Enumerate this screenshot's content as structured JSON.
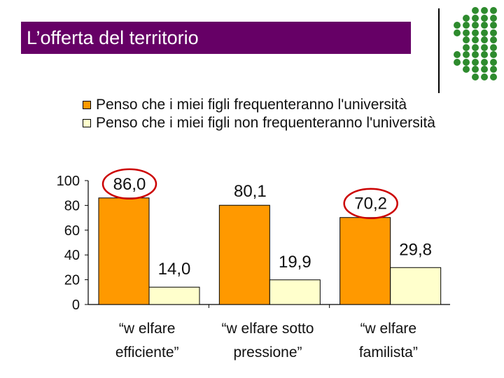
{
  "slide": {
    "title": "L’offerta del territorio",
    "accent": "#660066",
    "dot_color": "#2e8b2e"
  },
  "chart_data": {
    "type": "bar",
    "categories": [
      [
        "“w elfare",
        "efficiente”"
      ],
      [
        "“w elfare sotto",
        "pressione”"
      ],
      [
        "“w elfare",
        "familista”"
      ]
    ],
    "series": [
      {
        "name": "Penso che i miei figli frequenteranno l'università",
        "values": [
          86.0,
          80.1,
          70.2
        ],
        "labels": [
          "86,0",
          "80,1",
          "70,2"
        ],
        "color": "#ff9900"
      },
      {
        "name": "Penso che i miei figli non frequenteranno l'università",
        "values": [
          14.0,
          19.9,
          29.8
        ],
        "labels": [
          "14,0",
          "19,9",
          "29,8"
        ],
        "color": "#ffffcc"
      }
    ],
    "ylim": [
      0,
      100
    ],
    "yticks": [
      "0",
      "20",
      "40",
      "60",
      "80",
      "100"
    ],
    "highlighted": [
      "86,0",
      "70,2"
    ],
    "highlight_color": "#cc0000",
    "legend": "top",
    "grid": false
  }
}
